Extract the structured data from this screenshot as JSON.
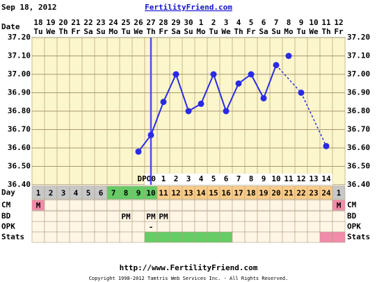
{
  "header": {
    "date": "Sep 18, 2012",
    "site": "FertilityFriend.com"
  },
  "chart_data": {
    "type": "line",
    "row_labels": {
      "date": "Date",
      "day": "Day",
      "cm": "CM",
      "bd": "BD",
      "opk": "OPK",
      "stats": "Stats"
    },
    "categories": [
      "18",
      "19",
      "20",
      "21",
      "22",
      "23",
      "24",
      "25",
      "26",
      "27",
      "28",
      "29",
      "30",
      "1",
      "2",
      "3",
      "4",
      "5",
      "6",
      "7",
      "8",
      "9",
      "10",
      "11",
      "12"
    ],
    "weekdays": [
      "Tu",
      "We",
      "Th",
      "Fr",
      "Sa",
      "Su",
      "Mo",
      "Tu",
      "We",
      "Th",
      "Fr",
      "Sa",
      "Su",
      "Mo",
      "Tu",
      "We",
      "Th",
      "Fr",
      "Sa",
      "Su",
      "Mo",
      "Tu",
      "We",
      "Th",
      "Fr"
    ],
    "ylim": [
      36.4,
      37.2
    ],
    "yticks": [
      {
        "value": 36.4,
        "label": "36.40"
      },
      {
        "value": 36.5,
        "label": "36.50"
      },
      {
        "value": 36.6,
        "label": "36.60"
      },
      {
        "value": 36.7,
        "label": "36.70"
      },
      {
        "value": 36.8,
        "label": "36.80"
      },
      {
        "value": 36.9,
        "label": "36.90"
      },
      {
        "value": 37.0,
        "label": "37.00"
      },
      {
        "value": 37.1,
        "label": "37.10"
      },
      {
        "value": 37.2,
        "label": "37.20"
      }
    ],
    "grid": true,
    "series": [
      {
        "color": "#2a2ae6",
        "style": "solid",
        "values": [
          null,
          null,
          null,
          null,
          null,
          null,
          null,
          null,
          36.58,
          36.67,
          36.85,
          37.0,
          36.8,
          36.84,
          37.0,
          36.8,
          36.95,
          37.0,
          36.87,
          37.05,
          null,
          null,
          null,
          null,
          null
        ]
      },
      {
        "color": "#2a2ae6",
        "style": "dashed",
        "values": [
          null,
          null,
          null,
          null,
          null,
          null,
          null,
          null,
          null,
          null,
          null,
          null,
          null,
          null,
          null,
          null,
          null,
          null,
          null,
          37.05,
          null,
          36.9,
          null,
          36.61,
          null
        ]
      },
      {
        "color": "#2a2ae6",
        "style": "points",
        "values": [
          null,
          null,
          null,
          null,
          null,
          null,
          null,
          null,
          null,
          null,
          null,
          null,
          null,
          null,
          null,
          null,
          null,
          null,
          null,
          null,
          37.1,
          null,
          null,
          null,
          null
        ]
      }
    ],
    "ovulation_color": "#4a4aff",
    "dpo": [
      null,
      null,
      null,
      null,
      null,
      null,
      null,
      null,
      null,
      "DPO0",
      1,
      2,
      3,
      4,
      5,
      6,
      7,
      8,
      9,
      10,
      11,
      12,
      13,
      14,
      null
    ],
    "cycle_days": [
      1,
      2,
      3,
      4,
      5,
      6,
      7,
      8,
      9,
      10,
      11,
      12,
      13,
      14,
      15,
      16,
      17,
      18,
      19,
      20,
      21,
      22,
      23,
      24,
      1
    ],
    "day_colors": [
      "#c8c8c8",
      "#c8c8c8",
      "#c8c8c8",
      "#c8c8c8",
      "#c8c8c8",
      "#c8c8c8",
      "#66cc66",
      "#66cc66",
      "#66cc66",
      "#66cc66",
      "#fccc88",
      "#fccc88",
      "#fccc88",
      "#fccc88",
      "#fccc88",
      "#fccc88",
      "#fccc88",
      "#fccc88",
      "#fccc88",
      "#fccc88",
      "#fccc88",
      "#fccc88",
      "#fccc88",
      "#fccc88",
      "#c8c8c8"
    ],
    "cm": [
      "M",
      null,
      null,
      null,
      null,
      null,
      null,
      null,
      null,
      null,
      null,
      null,
      null,
      null,
      null,
      null,
      null,
      null,
      null,
      null,
      null,
      null,
      null,
      null,
      "M"
    ],
    "cm_colors": [
      "#f08caa",
      null,
      null,
      null,
      null,
      null,
      null,
      null,
      null,
      null,
      null,
      null,
      null,
      null,
      null,
      null,
      null,
      null,
      null,
      null,
      null,
      null,
      null,
      null,
      "#f08caa"
    ],
    "bd": [
      null,
      null,
      null,
      null,
      null,
      null,
      null,
      "PM",
      null,
      "PM",
      "PM",
      null,
      null,
      null,
      null,
      null,
      null,
      null,
      null,
      null,
      null,
      null,
      null,
      null,
      null
    ],
    "opk": [
      null,
      null,
      null,
      null,
      null,
      null,
      null,
      null,
      null,
      "-",
      null,
      null,
      null,
      null,
      null,
      null,
      null,
      null,
      null,
      null,
      null,
      null,
      null,
      null,
      null
    ],
    "stats_colors": [
      null,
      null,
      null,
      null,
      null,
      null,
      null,
      null,
      null,
      "#66cc66",
      "#66cc66",
      "#66cc66",
      "#66cc66",
      "#66cc66",
      "#66cc66",
      "#66cc66",
      null,
      null,
      null,
      null,
      null,
      null,
      null,
      "#f08caa",
      "#f08caa"
    ]
  },
  "footer": {
    "url": "http://www.FertilityFriend.com",
    "copyright": "Copyright 1998-2012 Tamtris Web Services Inc. - All Rights Reserved."
  }
}
